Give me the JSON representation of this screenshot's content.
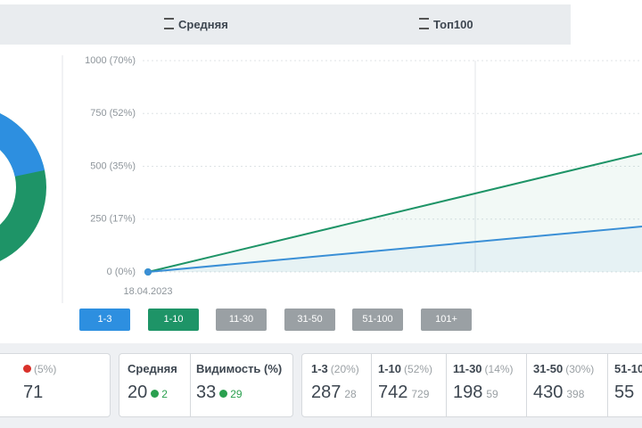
{
  "tabs": [
    "Средняя",
    "Топ100"
  ],
  "chart_data": {
    "type": "line",
    "x": [
      "18.04.2023",
      null
    ],
    "series": [
      {
        "color": "#1e9467",
        "values": [
          0,
          561
        ]
      },
      {
        "color": "#3a8fd6",
        "values": [
          0,
          215
        ]
      }
    ],
    "ylim": [
      0,
      1000
    ],
    "yticks": [
      {
        "value": 0,
        "label": "0 (0%)"
      },
      {
        "value": 250,
        "label": "250 (17%)"
      },
      {
        "value": 500,
        "label": "500 (35%)"
      },
      {
        "value": 750,
        "label": "750 (52%)"
      },
      {
        "value": 1000,
        "label": "1000 (70%)"
      }
    ],
    "grid": true
  },
  "filters": [
    {
      "label": "1-3",
      "color": "#2d8fe0"
    },
    {
      "label": "1-10",
      "color": "#1e9467"
    },
    {
      "label": "11-30",
      "color": "#9aa0a4"
    },
    {
      "label": "31-50",
      "color": "#9aa0a4"
    },
    {
      "label": "51-100",
      "color": "#9aa0a4"
    },
    {
      "label": "101+",
      "color": "#9aa0a4"
    }
  ],
  "summary": {
    "change": "(5%)",
    "value": 71
  },
  "metrics": [
    {
      "label": "Средняя",
      "value": 20,
      "delta": 2
    },
    {
      "label": "Видимость (%)",
      "value": 33,
      "delta": 29
    }
  ],
  "positions": [
    {
      "label": "1-3",
      "share": "(20%)",
      "value": 287,
      "delta": 28
    },
    {
      "label": "1-10",
      "share": "(52%)",
      "value": 742,
      "delta": 729
    },
    {
      "label": "11-30",
      "share": "(14%)",
      "value": 198,
      "delta": 59
    },
    {
      "label": "31-50",
      "share": "(30%)",
      "value": 430,
      "delta": 398
    },
    {
      "label": "51-10",
      "value": 55
    }
  ]
}
